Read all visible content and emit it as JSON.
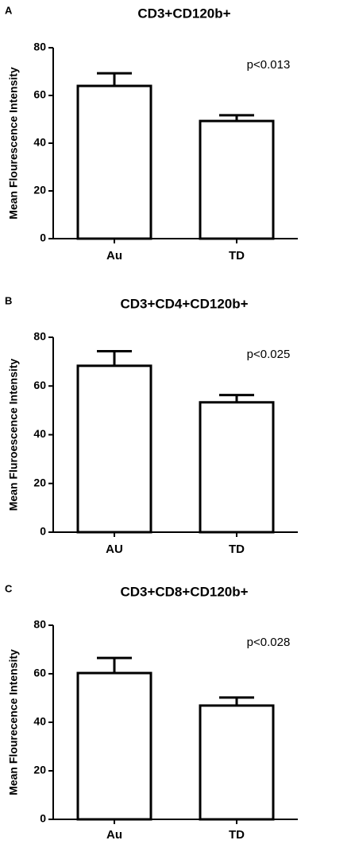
{
  "chart_data": [
    {
      "type": "bar",
      "panel": "A",
      "title": "CD3+CD120b+",
      "ylabel": "Mean Flourescence Intensity",
      "categories": [
        "Au",
        "TD"
      ],
      "values": [
        64,
        49.3
      ],
      "errors": [
        5.3,
        2.4
      ],
      "annotation": "p<0.013",
      "ylim": [
        0,
        80
      ],
      "yticks": [
        0,
        20,
        40,
        60,
        80
      ],
      "color": "#ffffff"
    },
    {
      "type": "bar",
      "panel": "B",
      "title": "CD3+CD4+CD120b+",
      "ylabel": "Mean Fluroescence Intensity",
      "categories": [
        "AU",
        "TD"
      ],
      "values": [
        68.3,
        53.3
      ],
      "errors": [
        6,
        3
      ],
      "annotation": "p<0.025",
      "ylim": [
        0,
        80
      ],
      "yticks": [
        0,
        20,
        40,
        60,
        80
      ],
      "color": "#ffffff"
    },
    {
      "type": "bar",
      "panel": "C",
      "title": "CD3+CD8+CD120b+",
      "ylabel": "Mean Flourecence Intensity",
      "categories": [
        "Au",
        "TD"
      ],
      "values": [
        60.3,
        46.9
      ],
      "errors": [
        6.2,
        3.3
      ],
      "annotation": "p<0.028",
      "ylim": [
        0,
        80
      ],
      "yticks": [
        0,
        20,
        40,
        60,
        80
      ],
      "color": "#ffffff"
    }
  ]
}
